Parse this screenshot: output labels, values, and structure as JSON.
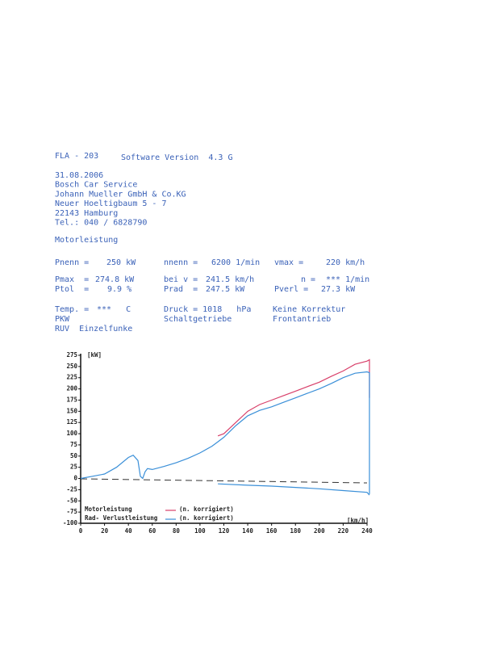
{
  "header": {
    "code": "FLA - 203",
    "software": "Software Version  4.3 G"
  },
  "address": [
    "31.08.2006",
    "Bosch Car Service",
    "Johann Mueller GmbH & Co.KG",
    "Neuer Hoeltigbaum 5 - 7",
    "22143 Hamburg",
    "Tel.: 040 / 6828790"
  ],
  "section_title": "Motorleistung",
  "specs": {
    "rows": [
      [
        "Pnenn =",
        "250 kW",
        "nnenn =",
        "6200 1/min",
        "vmax =",
        "220 km/h"
      ],
      [
        "Pmax  =",
        "274.8 kW",
        "bei v =",
        "241.5 km/h",
        "n =",
        "*** 1/min"
      ],
      [
        "Ptol  =",
        "9.9 %",
        "Prad  =",
        "247.5 kW",
        "Pverl =",
        "27.3 kW"
      ],
      [
        "Temp. =",
        "***   C",
        "Druck = 1018   hPa",
        "Keine Korrektur"
      ],
      [
        "PKW",
        "Schaltgetriebe",
        "Frontantrieb"
      ],
      [
        "RUV  Einzelfunke"
      ]
    ]
  },
  "chart_data": {
    "type": "line",
    "y_label": "[kW]",
    "x_label": "[km/h]",
    "xlim": [
      0,
      240
    ],
    "xticks": [
      0,
      20,
      40,
      60,
      80,
      100,
      120,
      140,
      160,
      180,
      200,
      220,
      240
    ],
    "ylim": [
      -100,
      275
    ],
    "yticks": [
      -100,
      -75,
      -50,
      -25,
      0,
      25,
      50,
      75,
      100,
      125,
      150,
      175,
      200,
      225,
      250,
      275
    ],
    "series": [
      {
        "name": "Motorleistung",
        "note": "(n. korrigiert)",
        "color": "#d8406a",
        "x": [
          115,
          120,
          130,
          140,
          150,
          160,
          170,
          180,
          190,
          200,
          210,
          220,
          230,
          240,
          242,
          242
        ],
        "values": [
          95,
          100,
          125,
          150,
          165,
          175,
          185,
          195,
          205,
          215,
          228,
          240,
          255,
          262,
          265,
          180
        ]
      },
      {
        "name": "Rad- Verlustleistung",
        "note": "(n. korrigiert)",
        "color": "#3a8fd8",
        "x": [
          0,
          10,
          20,
          30,
          40,
          44,
          48,
          50,
          52,
          54,
          56,
          60,
          70,
          80,
          90,
          100,
          110,
          115,
          120,
          130,
          140,
          150,
          160,
          170,
          180,
          190,
          200,
          210,
          220,
          230,
          240,
          242,
          242
        ],
        "values": [
          0,
          5,
          10,
          25,
          47,
          52,
          40,
          5,
          0,
          15,
          22,
          20,
          27,
          35,
          45,
          57,
          72,
          82,
          92,
          118,
          140,
          152,
          160,
          170,
          180,
          190,
          200,
          212,
          225,
          235,
          238,
          236,
          -35
        ]
      },
      {
        "color": "#3a8fd8",
        "x": [
          115,
          140,
          160,
          180,
          200,
          220,
          240,
          242
        ],
        "values": [
          -12,
          -15,
          -17,
          -20,
          -23,
          -27,
          -31,
          -37
        ]
      }
    ]
  }
}
